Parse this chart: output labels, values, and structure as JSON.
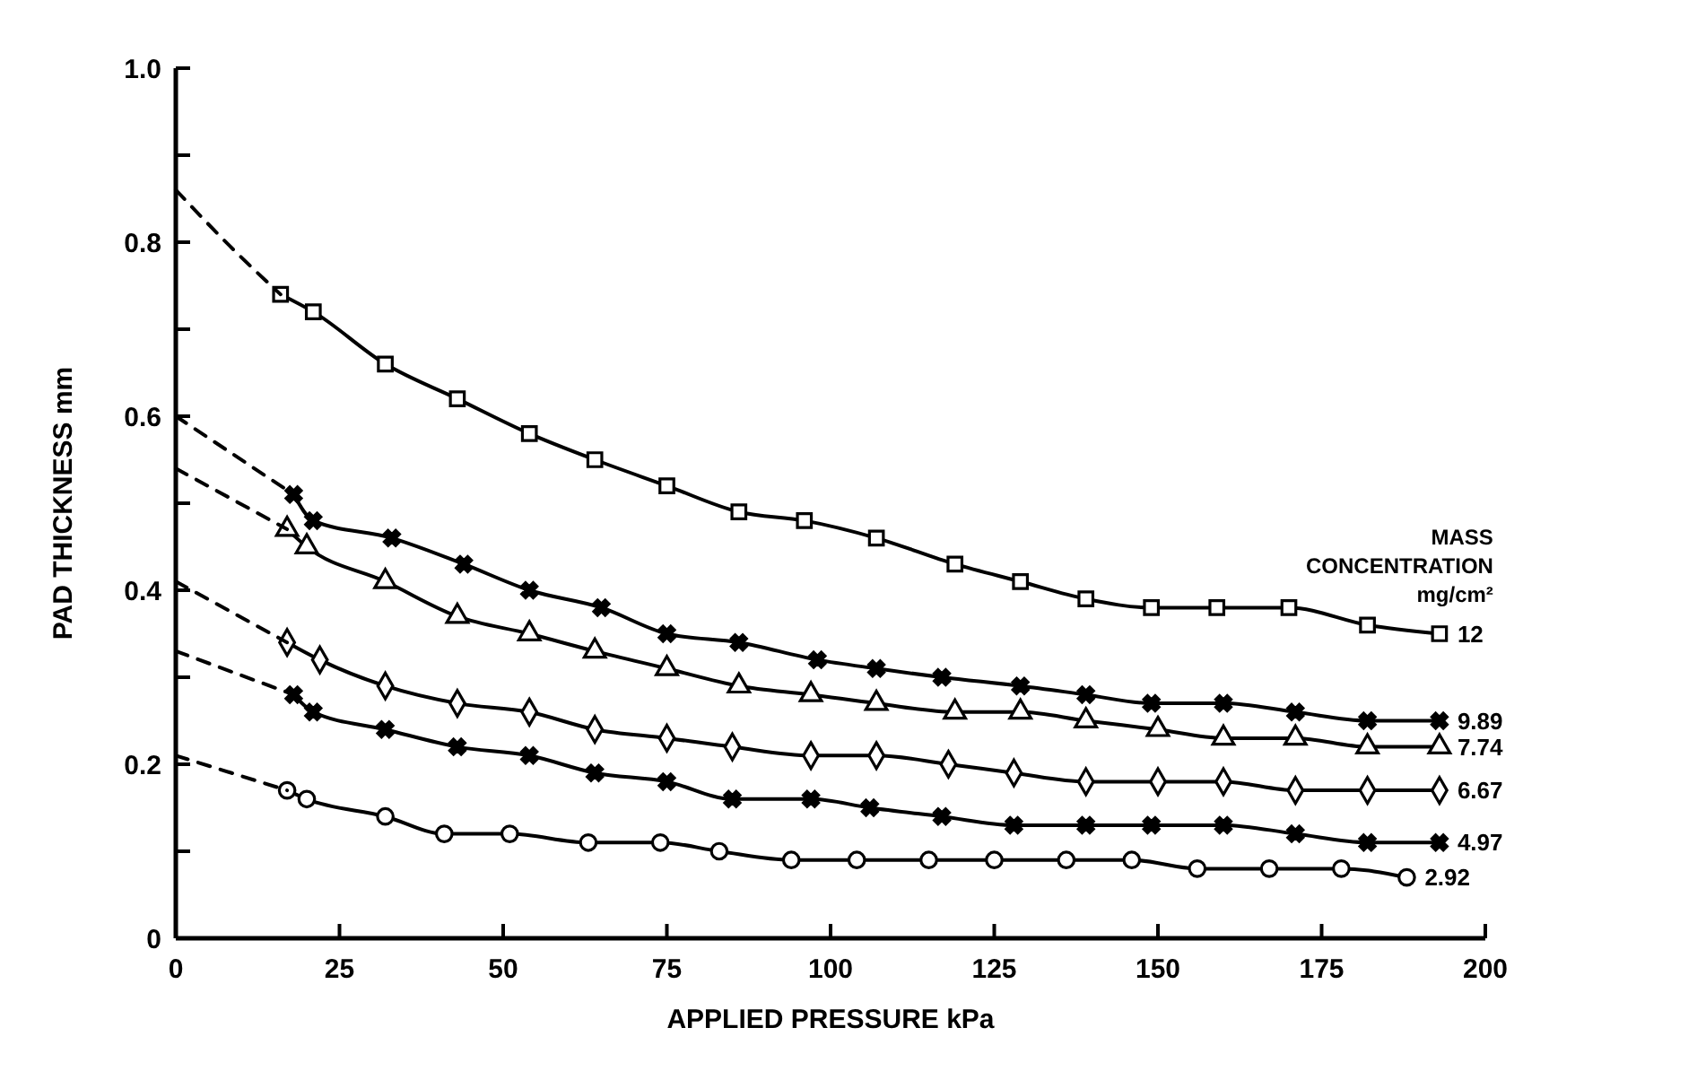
{
  "chart_data": {
    "type": "line",
    "xlabel": "APPLIED PRESSURE kPa",
    "ylabel": "PAD THICKNESS mm",
    "legend_title": "MASS CONCENTRATION mg/cm²",
    "xlim": [
      0,
      200
    ],
    "ylim": [
      0,
      1
    ],
    "xticks": [
      0,
      25,
      50,
      75,
      100,
      125,
      150,
      175,
      200
    ],
    "yticks": [
      0,
      {
        "value": 0.1,
        "label": null
      },
      0.2,
      {
        "value": 0.3,
        "label": null
      },
      0.4,
      {
        "value": 0.5,
        "label": null
      },
      0.6,
      {
        "value": 0.7,
        "label": null
      },
      0.8,
      {
        "value": 0.9,
        "label": null
      },
      {
        "value": 1,
        "label": "1.0"
      }
    ],
    "series": [
      {
        "name": "12",
        "color": "#000000",
        "marker": "square",
        "x": [
          16,
          21,
          32,
          43,
          54,
          64,
          75,
          86,
          96,
          107,
          119,
          129,
          139,
          149,
          159,
          170,
          182,
          193
        ],
        "values": [
          0.74,
          0.72,
          0.66,
          0.62,
          0.58,
          0.55,
          0.52,
          0.49,
          0.48,
          0.46,
          0.43,
          0.41,
          0.39,
          0.38,
          0.38,
          0.38,
          0.36,
          0.35
        ]
      },
      {
        "name": "9.89",
        "color": "#000000",
        "marker": "cross",
        "x": [
          18,
          21,
          33,
          44,
          54,
          65,
          75,
          86,
          98,
          107,
          117,
          129,
          139,
          149,
          160,
          171,
          182,
          193
        ],
        "values": [
          0.51,
          0.48,
          0.46,
          0.43,
          0.4,
          0.38,
          0.35,
          0.34,
          0.32,
          0.31,
          0.3,
          0.29,
          0.28,
          0.27,
          0.27,
          0.26,
          0.25,
          0.25
        ]
      },
      {
        "name": "7.74",
        "color": "#000000",
        "marker": "triangle",
        "x": [
          17,
          20,
          32,
          43,
          54,
          64,
          75,
          86,
          97,
          107,
          119,
          129,
          139,
          150,
          160,
          171,
          182,
          193
        ],
        "values": [
          0.47,
          0.45,
          0.41,
          0.37,
          0.35,
          0.33,
          0.31,
          0.29,
          0.28,
          0.27,
          0.26,
          0.26,
          0.25,
          0.24,
          0.23,
          0.23,
          0.22,
          0.22
        ]
      },
      {
        "name": "6.67",
        "color": "#000000",
        "marker": "diamond",
        "x": [
          17,
          22,
          32,
          43,
          54,
          64,
          75,
          85,
          97,
          107,
          118,
          128,
          139,
          150,
          160,
          171,
          182,
          193
        ],
        "values": [
          0.34,
          0.32,
          0.29,
          0.27,
          0.26,
          0.24,
          0.23,
          0.22,
          0.21,
          0.21,
          0.2,
          0.19,
          0.18,
          0.18,
          0.18,
          0.17,
          0.17,
          0.17
        ]
      },
      {
        "name": "4.97",
        "color": "#000000",
        "marker": "cross",
        "x": [
          18,
          21,
          32,
          43,
          54,
          64,
          75,
          85,
          97,
          106,
          117,
          128,
          139,
          149,
          160,
          171,
          182,
          193
        ],
        "values": [
          0.28,
          0.26,
          0.24,
          0.22,
          0.21,
          0.19,
          0.18,
          0.16,
          0.16,
          0.15,
          0.14,
          0.13,
          0.13,
          0.13,
          0.13,
          0.12,
          0.11,
          0.11
        ]
      },
      {
        "name": "2.92",
        "color": "#000000",
        "marker": "circle",
        "x": [
          17,
          20,
          32,
          41,
          51,
          63,
          74,
          83,
          94,
          104,
          115,
          125,
          136,
          146,
          156,
          167,
          178,
          188
        ],
        "values": [
          0.17,
          0.16,
          0.14,
          0.12,
          0.12,
          0.11,
          0.11,
          0.1,
          0.09,
          0.09,
          0.09,
          0.09,
          0.09,
          0.09,
          0.08,
          0.08,
          0.08,
          0.07
        ]
      },
      {
        "color": "#000000",
        "line_style": "dashed",
        "marker": "none",
        "x": [
          0,
          9,
          16
        ],
        "values": [
          0.86,
          0.79,
          0.74
        ]
      },
      {
        "color": "#000000",
        "line_style": "dashed",
        "marker": "none",
        "x": [
          0,
          18
        ],
        "values": [
          0.6,
          0.51
        ]
      },
      {
        "color": "#000000",
        "line_style": "dashed",
        "marker": "none",
        "x": [
          0,
          17
        ],
        "values": [
          0.54,
          0.47
        ]
      },
      {
        "color": "#000000",
        "line_style": "dashed",
        "marker": "none",
        "x": [
          0,
          17
        ],
        "values": [
          0.41,
          0.34
        ]
      },
      {
        "color": "#000000",
        "line_style": "dashed",
        "marker": "none",
        "x": [
          0,
          18
        ],
        "values": [
          0.33,
          0.28
        ]
      },
      {
        "color": "#000000",
        "line_style": "dashed",
        "marker": "none",
        "x": [
          0,
          17
        ],
        "values": [
          0.21,
          0.17
        ]
      }
    ]
  }
}
